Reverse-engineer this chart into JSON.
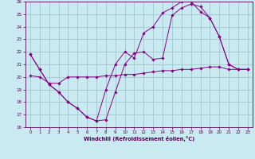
{
  "xlabel": "Windchill (Refroidissement éolien,°C)",
  "xlim": [
    -0.5,
    23.5
  ],
  "ylim": [
    16,
    26
  ],
  "yticks": [
    16,
    17,
    18,
    19,
    20,
    21,
    22,
    23,
    24,
    25,
    26
  ],
  "xticks": [
    0,
    1,
    2,
    3,
    4,
    5,
    6,
    7,
    8,
    9,
    10,
    11,
    12,
    13,
    14,
    15,
    16,
    17,
    18,
    19,
    20,
    21,
    22,
    23
  ],
  "background_color": "#c8eaf0",
  "grid_color": "#9bbfc8",
  "line_color": "#880088",
  "line1_y": [
    21.8,
    20.6,
    19.4,
    18.8,
    18.0,
    17.5,
    16.8,
    16.5,
    16.6,
    18.8,
    21.0,
    21.9,
    22.0,
    21.4,
    21.5,
    24.9,
    25.5,
    25.8,
    25.6,
    24.7,
    23.2,
    21.0,
    20.6,
    20.6
  ],
  "line2_y": [
    21.8,
    20.6,
    19.4,
    18.8,
    18.0,
    17.5,
    16.8,
    16.5,
    19.0,
    21.0,
    22.0,
    21.5,
    23.5,
    24.0,
    25.1,
    25.5,
    26.0,
    26.0,
    25.2,
    24.7,
    23.2,
    21.0,
    20.6,
    20.6
  ],
  "line3_y": [
    20.1,
    20.0,
    19.5,
    19.5,
    20.0,
    20.0,
    20.0,
    20.0,
    20.1,
    20.1,
    20.2,
    20.2,
    20.3,
    20.4,
    20.5,
    20.5,
    20.6,
    20.6,
    20.7,
    20.8,
    20.8,
    20.6,
    20.6,
    20.6
  ]
}
